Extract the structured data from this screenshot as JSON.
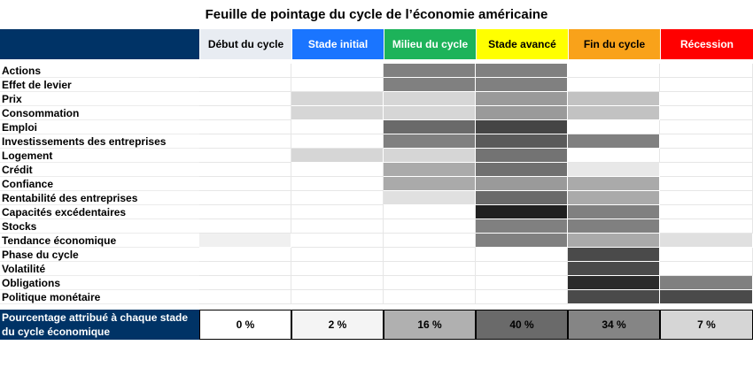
{
  "title": "Feuille de pointage du cycle de l’économie américaine",
  "stages": [
    {
      "label": "Début du cycle",
      "bg": "#e8ecf2",
      "fg": "#000000"
    },
    {
      "label": "Stade initial",
      "bg": "#1a75ff",
      "fg": "#ffffff"
    },
    {
      "label": "Milieu du cycle",
      "bg": "#1db35a",
      "fg": "#ffffff"
    },
    {
      "label": "Stade avancé",
      "bg": "#ffff00",
      "fg": "#000000"
    },
    {
      "label": "Fin du cycle",
      "bg": "#f9a21a",
      "fg": "#000000"
    },
    {
      "label": "Récession",
      "bg": "#ff0000",
      "fg": "#ffffff"
    }
  ],
  "rows": [
    {
      "label": "Actions",
      "cells": [
        null,
        null,
        "#808080",
        "#808080",
        null,
        null
      ]
    },
    {
      "label": "Effet de levier",
      "cells": [
        null,
        null,
        "#808080",
        "#808080",
        null,
        null
      ]
    },
    {
      "label": "Prix",
      "cells": [
        null,
        "#d6d6d6",
        "#d6d6d6",
        "#9a9a9a",
        "#c2c2c2",
        null
      ]
    },
    {
      "label": "Consommation",
      "cells": [
        null,
        "#d6d6d6",
        "#d6d6d6",
        "#9a9a9a",
        "#c2c2c2",
        null
      ]
    },
    {
      "label": "Emploi",
      "cells": [
        null,
        null,
        "#6a6a6a",
        "#454545",
        null,
        null
      ]
    },
    {
      "label": "Investissements des entreprises",
      "cells": [
        null,
        null,
        "#808080",
        "#5a5a5a",
        "#808080",
        null
      ]
    },
    {
      "label": "Logement",
      "cells": [
        null,
        "#d6d6d6",
        "#d6d6d6",
        "#737373",
        null,
        null
      ]
    },
    {
      "label": "Crédit",
      "cells": [
        null,
        null,
        "#aaaaaa",
        "#707070",
        "#e8e8e8",
        null
      ]
    },
    {
      "label": "Confiance",
      "cells": [
        null,
        null,
        "#aaaaaa",
        "#9a9a9a",
        "#aaaaaa",
        null
      ]
    },
    {
      "label": "Rentabilité des entreprises",
      "cells": [
        null,
        null,
        "#e0e0e0",
        "#6a6a6a",
        "#aaaaaa",
        null
      ]
    },
    {
      "label": "Capacités excédentaires",
      "cells": [
        null,
        null,
        null,
        "#202020",
        "#808080",
        null
      ]
    },
    {
      "label": "Stocks",
      "cells": [
        null,
        null,
        null,
        "#808080",
        "#808080",
        null
      ]
    },
    {
      "label": "Tendance économique",
      "cells": [
        "#f0f0f0",
        null,
        null,
        "#808080",
        "#aaaaaa",
        "#e0e0e0"
      ]
    },
    {
      "label": "Phase du cycle",
      "cells": [
        null,
        null,
        null,
        null,
        "#4a4a4a",
        null
      ]
    },
    {
      "label": "Volatilité",
      "cells": [
        null,
        null,
        null,
        null,
        "#4a4a4a",
        null
      ]
    },
    {
      "label": "Obligations",
      "cells": [
        null,
        null,
        null,
        null,
        "#2a2a2a",
        "#808080"
      ]
    },
    {
      "label": "Politique monétaire",
      "cells": [
        null,
        null,
        null,
        null,
        "#4a4a4a",
        "#4a4a4a"
      ]
    }
  ],
  "footer": {
    "label": "Pourcentage attribué à chaque stade du cycle économique",
    "values": [
      {
        "text": "0  %",
        "bg": "#ffffff"
      },
      {
        "text": "2  %",
        "bg": "#f4f4f4"
      },
      {
        "text": "16  %",
        "bg": "#b0b0b0"
      },
      {
        "text": "40  %",
        "bg": "#6a6a6a"
      },
      {
        "text": "34  %",
        "bg": "#858585"
      },
      {
        "text": "7  %",
        "bg": "#d6d6d6"
      }
    ]
  }
}
